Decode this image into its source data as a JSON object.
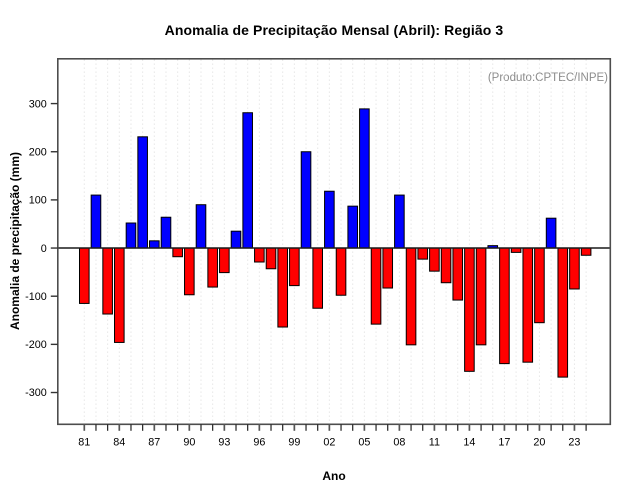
{
  "header": {
    "title": "Anomalia de Precipitação Mensal (Abril): Região 3"
  },
  "chart_data": {
    "type": "bar",
    "title": "Anomalia de Precipitação Mensal (Abril): Região 3",
    "xlabel": "Ano",
    "ylabel": "Anomalia de precipitação (mm)",
    "annotation": "(Produto:CPTEC/INPE)",
    "annotation_color": "#8c8c8c",
    "x": [
      1981,
      1982,
      1983,
      1984,
      1985,
      1986,
      1987,
      1988,
      1989,
      1990,
      1991,
      1992,
      1993,
      1994,
      1995,
      1996,
      1997,
      1998,
      1999,
      2000,
      2001,
      2002,
      2003,
      2004,
      2005,
      2006,
      2007,
      2008,
      2009,
      2010,
      2011,
      2012,
      2013,
      2014,
      2015,
      2016,
      2017,
      2018,
      2019,
      2020,
      2021,
      2022,
      2023,
      2024
    ],
    "values": [
      -115,
      110,
      -137,
      -196,
      52,
      231,
      15,
      64,
      -18,
      -97,
      90,
      -81,
      -51,
      35,
      281,
      -29,
      -43,
      -164,
      -78,
      200,
      -125,
      118,
      -98,
      87,
      289,
      -158,
      -83,
      110,
      -201,
      -23,
      -48,
      -72,
      -108,
      -256,
      -201,
      5,
      -240,
      -9,
      -237,
      -155,
      62,
      -268,
      -85,
      -15
    ],
    "positive_color": "#0000ff",
    "negative_color": "#ff0000",
    "bar_border_color": "#000000",
    "yticks": [
      -300,
      -200,
      -100,
      0,
      100,
      200,
      300
    ],
    "ylim": [
      -366,
      393
    ],
    "xtick_labels": [
      "81",
      "84",
      "87",
      "90",
      "93",
      "96",
      "99",
      "02",
      "05",
      "08",
      "11",
      "14",
      "17",
      "20",
      "23"
    ],
    "xtick_label_every": 3,
    "grid": "vertical-dotted",
    "grid_color": "#dadada",
    "box_color": "#4d4d4d",
    "zero_line_color": "#1a1a1a",
    "legend": "none"
  }
}
